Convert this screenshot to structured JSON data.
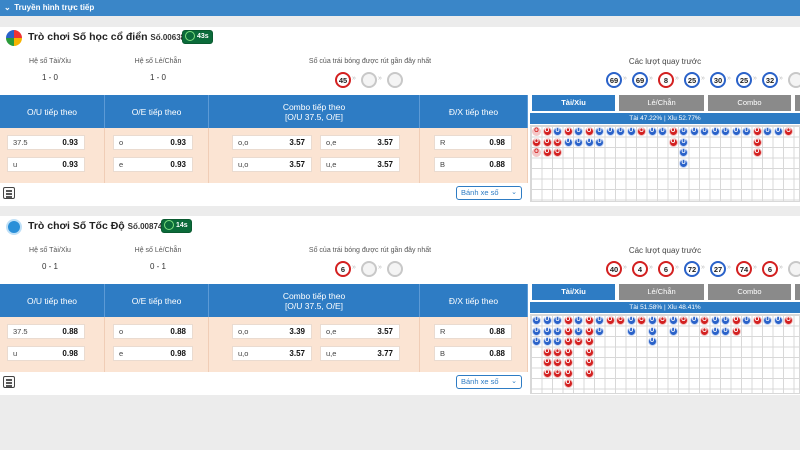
{
  "header": {
    "title": "Truyền hình trực tiếp"
  },
  "labels": {
    "ou_odds": "Hệ số Tài/Xỉu",
    "oe_odds": "Hệ số Lẻ/Chẵn",
    "last_ball": "Số của trái bóng được rút gần đây nhất",
    "prev_draws": "Các lượt quay trước",
    "ou_next": "O/U tiếp theo",
    "oe_next": "O/E tiếp theo",
    "combo_next": "Combo tiếp theo",
    "combo_sub": "[O/U 37.5, O/E]",
    "dx_next": "Đ/X tiếp theo",
    "wheel": "Bánh xe số",
    "tab_ou": "Tài/Xỉu",
    "tab_oe": "Lẻ/Chẵn",
    "tab_combo": "Combo"
  },
  "games": [
    {
      "name": "Trò chơi Số học cổ điển",
      "session": "Số.00638",
      "timer": "43s",
      "ou_odds": "1 - 0",
      "oe_odds": "1 - 0",
      "last_ball": "45",
      "prev_balls": [
        {
          "n": "69",
          "c": "blue"
        },
        {
          "n": "69",
          "c": "blue"
        },
        {
          "n": "8",
          "c": "red"
        },
        {
          "n": "25",
          "c": "blue"
        },
        {
          "n": "30",
          "c": "blue"
        },
        {
          "n": "25",
          "c": "blue"
        },
        {
          "n": "32",
          "c": "blue"
        }
      ],
      "ou": [
        {
          "label": "37.5",
          "value": "0.93"
        },
        {
          "label": "u",
          "value": "0.93"
        }
      ],
      "oe": [
        {
          "label": "o",
          "value": "0.93"
        },
        {
          "label": "e",
          "value": "0.93"
        }
      ],
      "combo": [
        {
          "label": "o,o",
          "value": "3.57"
        },
        {
          "label": "o,e",
          "value": "3.57"
        },
        {
          "label": "u,o",
          "value": "3.57"
        },
        {
          "label": "u,e",
          "value": "3.57"
        }
      ],
      "dx": [
        {
          "label": "R",
          "value": "0.98"
        },
        {
          "label": "B",
          "value": "0.88"
        }
      ],
      "pct": "Tài 47.22% | Xỉu 52.77%",
      "road": [
        [
          "pink",
          "red",
          "pink"
        ],
        [
          "red",
          "red",
          "red"
        ],
        [
          "blue",
          "red",
          "red"
        ],
        [
          "red",
          "blue"
        ],
        [
          "blue",
          "blue"
        ],
        [
          "red",
          "blue"
        ],
        [
          "blue",
          "blue"
        ],
        [
          "blue"
        ],
        [
          "blue"
        ],
        [
          "blue"
        ],
        [
          "red"
        ],
        [
          "blue"
        ],
        [
          "blue"
        ],
        [
          "red",
          "red"
        ],
        [
          "blue",
          "blue",
          "blue",
          "blue"
        ],
        [
          "blue"
        ],
        [
          "blue"
        ],
        [
          "blue"
        ],
        [
          "blue"
        ],
        [
          "blue"
        ],
        [
          "blue"
        ],
        [
          "red",
          "red",
          "red"
        ],
        [
          "blue"
        ],
        [
          "blue"
        ],
        [
          "red"
        ]
      ]
    },
    {
      "name": "Trò chơi Số Tốc Độ",
      "session": "Số.00874",
      "timer": "14s",
      "ou_odds": "0 - 1",
      "oe_odds": "0 - 1",
      "last_ball": "6",
      "prev_balls": [
        {
          "n": "40",
          "c": "red"
        },
        {
          "n": "4",
          "c": "red"
        },
        {
          "n": "6",
          "c": "red"
        },
        {
          "n": "72",
          "c": "blue"
        },
        {
          "n": "27",
          "c": "blue"
        },
        {
          "n": "74",
          "c": "red"
        },
        {
          "n": "6",
          "c": "red"
        }
      ],
      "ou": [
        {
          "label": "37.5",
          "value": "0.88"
        },
        {
          "label": "u",
          "value": "0.98"
        }
      ],
      "oe": [
        {
          "label": "o",
          "value": "0.88"
        },
        {
          "label": "e",
          "value": "0.98"
        }
      ],
      "combo": [
        {
          "label": "o,o",
          "value": "3.39"
        },
        {
          "label": "o,e",
          "value": "3.57"
        },
        {
          "label": "u,o",
          "value": "3.57"
        },
        {
          "label": "u,e",
          "value": "3.77"
        }
      ],
      "dx": [
        {
          "label": "R",
          "value": "0.88"
        },
        {
          "label": "B",
          "value": "0.88"
        }
      ],
      "pct": "Tài 51.58% | Xỉu 48.41%",
      "road": [
        [
          "blue",
          "blue",
          "blue"
        ],
        [
          "blue",
          "blue",
          "blue",
          "red",
          "red",
          "red"
        ],
        [
          "blue",
          "blue",
          "blue",
          "red",
          "red",
          "red"
        ],
        [
          "red",
          "red",
          "red",
          "red",
          "red",
          "red",
          "red"
        ],
        [
          "blue",
          "blue",
          "red"
        ],
        [
          "red",
          "red",
          "red",
          "red",
          "red",
          "red"
        ],
        [
          "blue",
          "blue"
        ],
        [
          "red"
        ],
        [
          "red"
        ],
        [
          "blue",
          "blue"
        ],
        [
          "red"
        ],
        [
          "blue",
          "blue",
          "blue"
        ],
        [
          "red"
        ],
        [
          "blue",
          "blue"
        ],
        [
          "red"
        ],
        [
          "blue"
        ],
        [
          "red",
          "red"
        ],
        [
          "blue",
          "blue"
        ],
        [
          "blue",
          "blue"
        ],
        [
          "red",
          "red"
        ],
        [
          "blue"
        ],
        [
          "red"
        ],
        [
          "blue"
        ],
        [
          "blue"
        ],
        [
          "red"
        ]
      ]
    }
  ],
  "icons": {
    "calculator": "calculator-icon",
    "chevron": "chevron-down-icon",
    "clock": "clock-icon"
  },
  "colors": {
    "primary": "#2e7cc4",
    "bet_bg": "#fbe4d3",
    "red_ball": "#d32020",
    "blue_ball": "#2a62c9",
    "timer": "#0b6b3a"
  }
}
